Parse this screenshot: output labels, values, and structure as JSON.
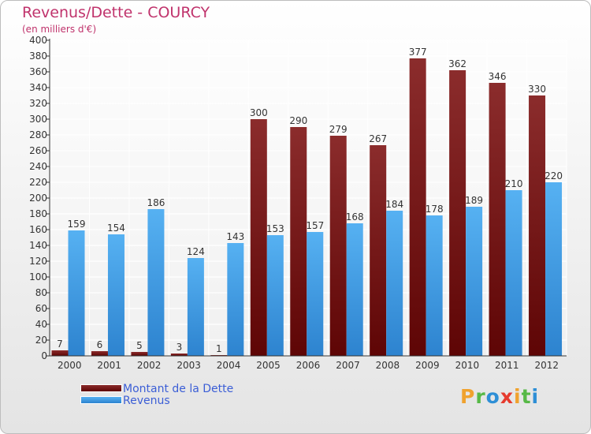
{
  "title": "Revenus/Dette - COURCY",
  "subtitle": "(en milliers d'€)",
  "legend": {
    "items": [
      {
        "label": "Montant de la Dette"
      },
      {
        "label": "Revenus"
      }
    ]
  },
  "brand": {
    "letters": [
      "P",
      "r",
      "o",
      "x",
      "i",
      "t",
      "i"
    ],
    "colors": [
      "#f0a22e",
      "#57b947",
      "#2e8fd6",
      "#e63b2e",
      "#f0a22e",
      "#57b947",
      "#2e8fd6"
    ]
  },
  "colors": {
    "dette": "#7a1a1a",
    "revenus": "#3f9be4",
    "title": "#c0336c",
    "legend_text": "#3b5ed6"
  },
  "chart_data": {
    "type": "bar",
    "title": "Revenus/Dette - COURCY",
    "subtitle": "(en milliers d'€)",
    "categories": [
      "2000",
      "2001",
      "2002",
      "2003",
      "2004",
      "2005",
      "2006",
      "2007",
      "2008",
      "2009",
      "2010",
      "2011",
      "2012"
    ],
    "series": [
      {
        "name": "Montant de la Dette",
        "values": [
          7,
          6,
          5,
          3,
          1,
          300,
          290,
          279,
          267,
          377,
          362,
          346,
          330
        ]
      },
      {
        "name": "Revenus",
        "values": [
          159,
          154,
          186,
          124,
          143,
          153,
          157,
          168,
          184,
          178,
          189,
          210,
          220
        ]
      }
    ],
    "ylim": [
      0,
      400
    ],
    "ytick_step": 20,
    "grid": true,
    "legend_position": "bottom-left"
  }
}
